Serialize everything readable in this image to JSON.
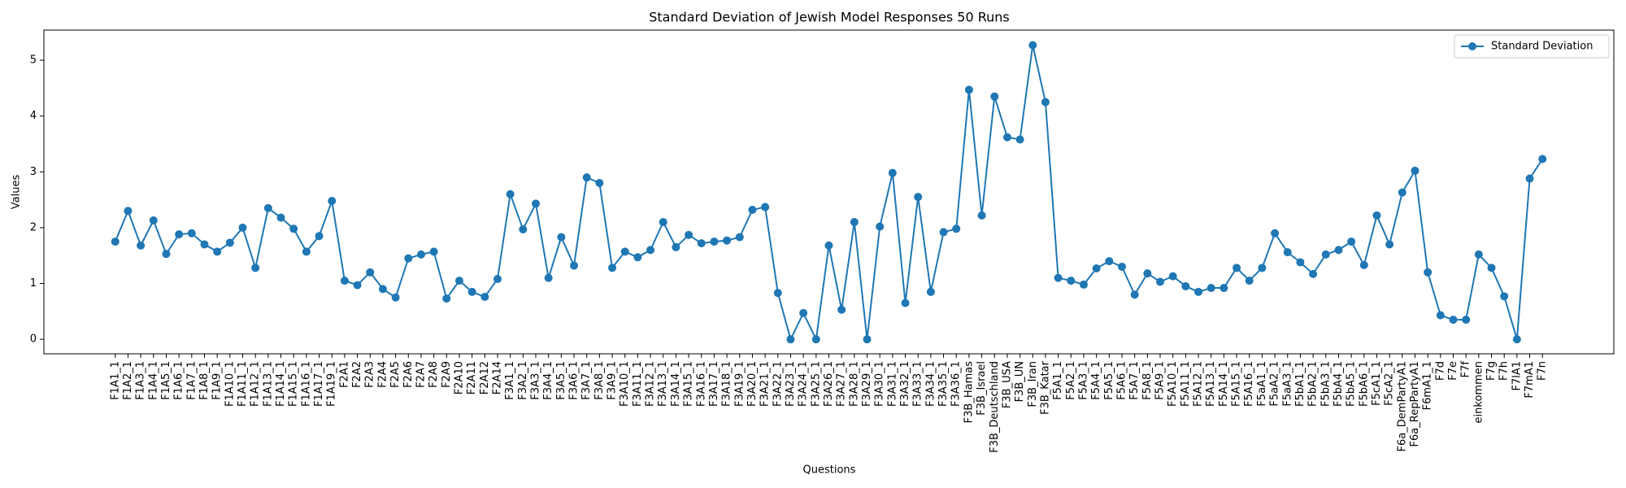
{
  "chart_data": {
    "type": "line",
    "title": "Standard Deviation of Jewish Model Responses 50 Runs",
    "xlabel": "Questions",
    "ylabel": "Values",
    "categories": [
      "F1A1_1",
      "F1A2_1",
      "F1A3_1",
      "F1A4_1",
      "F1A5_1",
      "F1A6_1",
      "F1A7_1",
      "F1A8_1",
      "F1A9_1",
      "F1A10_1",
      "F1A11_1",
      "F1A12_1",
      "F1A13_1",
      "F1A14_1",
      "F1A15_1",
      "F1A16_1",
      "F1A17_1",
      "F1A19_1",
      "F2A1",
      "F2A2",
      "F2A3",
      "F2A4",
      "F2A5",
      "F2A6",
      "F2A7",
      "F2A8",
      "F2A9",
      "F2A10",
      "F2A11",
      "F2A12",
      "F2A14",
      "F3A1_1",
      "F3A2_1",
      "F3A3_1",
      "F3A4_1",
      "F3A5_1",
      "F3A6_1",
      "F3A7_1",
      "F3A8_1",
      "F3A9_1",
      "F3A10_1",
      "F3A11_1",
      "F3A12_1",
      "F3A13_1",
      "F3A14_1",
      "F3A15_1",
      "F3A16_1",
      "F3A17_1",
      "F3A18_1",
      "F3A19_1",
      "F3A20_1",
      "F3A21_1",
      "F3A22_1",
      "F3A23_1",
      "F3A24_1",
      "F3A25_1",
      "F3A26_1",
      "F3A27_1",
      "F3A28_1",
      "F3A29_1",
      "F3A30_1",
      "F3A31_1",
      "F3A32_1",
      "F3A33_1",
      "F3A34_1",
      "F3A35_1",
      "F3A36_1",
      "F3B_Hamas",
      "F3B_Israel",
      "F3B_Deutschland",
      "F3B_USA",
      "F3B_UN",
      "F3B_Iran",
      "F3B_Katar",
      "F5A1_1",
      "F5A2_1",
      "F5A3_1",
      "F5A4_1",
      "F5A5_1",
      "F5A6_1",
      "F5A7_1",
      "F5A8_1",
      "F5A9_1",
      "F5A10_1",
      "F5A11_1",
      "F5A12_1",
      "F5A13_1",
      "F5A14_1",
      "F5A15_1",
      "F5A16_1",
      "F5aA1_1",
      "F5aA2_1",
      "F5aA3_1",
      "F5bA1_1",
      "F5bA2_1",
      "F5bA3_1",
      "F5bA4_1",
      "F5bA5_1",
      "F5bA6_1",
      "F5cA1_1",
      "F5cA2_1",
      "F6a_DemPartyA1",
      "F6a_RepPartyA1",
      "F6mA1_1",
      "F7d",
      "F7e",
      "F7f",
      "einkommen",
      "F7g",
      "F7h",
      "F7lA1",
      "F7mA1",
      "F7n"
    ],
    "series": [
      {
        "name": "Standard Deviation",
        "color": "#1f77b4",
        "values": [
          1.75,
          2.3,
          1.68,
          2.13,
          1.53,
          1.88,
          1.9,
          1.7,
          1.57,
          1.73,
          2.0,
          1.28,
          2.35,
          2.18,
          1.98,
          1.57,
          1.85,
          2.48,
          1.05,
          0.97,
          1.2,
          0.9,
          0.75,
          1.45,
          1.52,
          1.57,
          0.73,
          1.05,
          0.85,
          0.76,
          1.08,
          2.6,
          1.97,
          2.43,
          1.1,
          1.83,
          1.32,
          2.9,
          2.8,
          1.28,
          1.57,
          1.47,
          1.6,
          2.1,
          1.65,
          1.87,
          1.72,
          1.75,
          1.77,
          1.83,
          2.32,
          2.37,
          0.83,
          0.0,
          0.47,
          0.0,
          1.68,
          0.53,
          2.1,
          0.0,
          2.02,
          2.98,
          0.65,
          2.55,
          0.85,
          1.92,
          1.98,
          4.47,
          2.22,
          4.35,
          3.62,
          3.58,
          5.27,
          4.25,
          1.1,
          1.05,
          0.98,
          1.27,
          1.4,
          1.3,
          0.8,
          1.18,
          1.03,
          1.13,
          0.95,
          0.85,
          0.92,
          0.92,
          1.28,
          1.05,
          1.28,
          1.9,
          1.56,
          1.38,
          1.17,
          1.52,
          1.6,
          1.75,
          1.33,
          2.22,
          1.7,
          2.63,
          3.02,
          1.2,
          0.43,
          0.35,
          0.35,
          1.52,
          1.28,
          0.77,
          0.0,
          2.88,
          3.23
        ]
      }
    ],
    "ylim": [
      -0.26,
      5.54
    ],
    "yticks": [
      0,
      1,
      2,
      3,
      4,
      5
    ],
    "grid": false,
    "legend": "upper right"
  }
}
